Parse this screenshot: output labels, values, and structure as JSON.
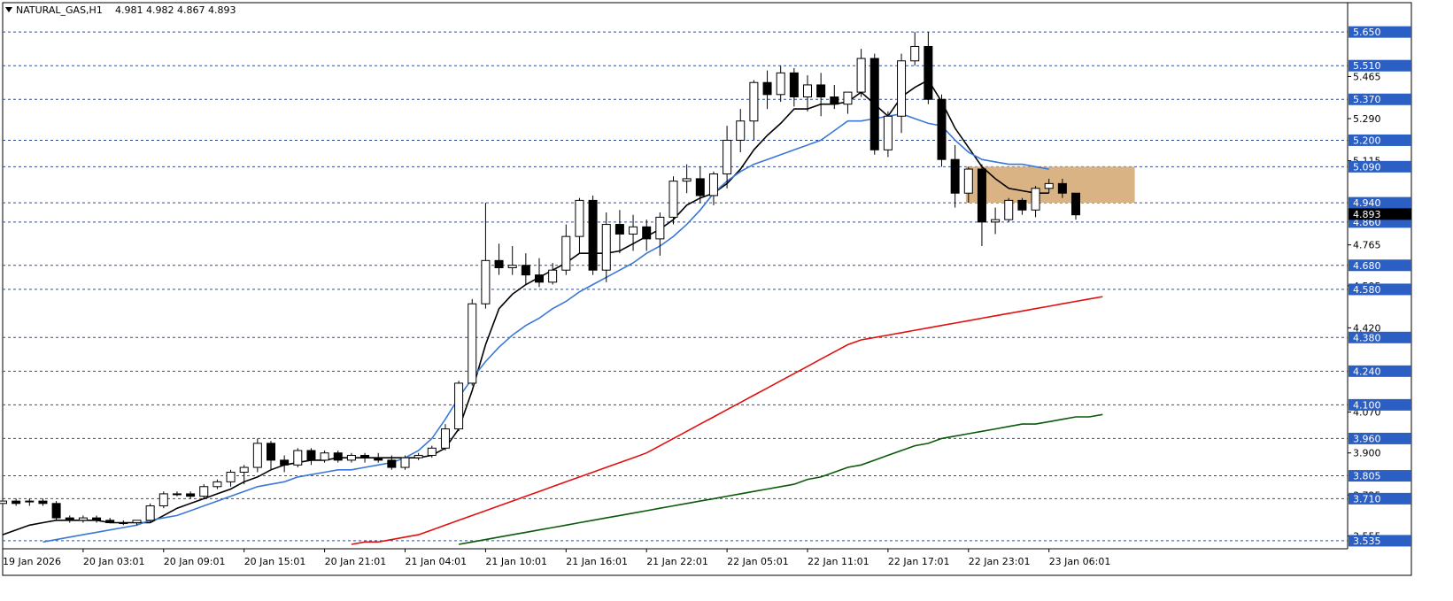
{
  "header": {
    "symbol": "NATURAL_GAS,H1",
    "ohlc": "4.981 4.982 4.867 4.893"
  },
  "colors": {
    "grid": "#1f4fb0",
    "level_label_bg": "#2c5fc4",
    "current_price_bg": "#000000",
    "zone_fill": "#d9b384",
    "ma_fast": "#000000",
    "ma_mid": "#3a78d8",
    "ma_slow": "#e01010",
    "ma_slowest": "#0a5a0a"
  },
  "chart_data": {
    "type": "candlestick",
    "title": "",
    "ylim": [
      3.52,
      5.68
    ],
    "y_ticks": [
      5.465,
      5.29,
      5.115,
      4.765,
      4.595,
      4.42,
      4.07,
      3.9,
      3.725,
      3.555
    ],
    "levels": [
      5.65,
      5.51,
      5.37,
      5.2,
      5.09,
      4.94,
      4.86,
      4.68,
      4.58,
      4.38,
      4.24,
      4.1,
      3.96,
      3.805,
      3.71,
      3.535
    ],
    "current_price": 4.893,
    "x_labels": [
      {
        "i": 0,
        "text": "19 Jan 2026"
      },
      {
        "i": 6,
        "text": "20 Jan 03:01"
      },
      {
        "i": 12,
        "text": "20 Jan 09:01"
      },
      {
        "i": 18,
        "text": "20 Jan 15:01"
      },
      {
        "i": 24,
        "text": "20 Jan 21:01"
      },
      {
        "i": 30,
        "text": "21 Jan 04:01"
      },
      {
        "i": 36,
        "text": "21 Jan 10:01"
      },
      {
        "i": 42,
        "text": "21 Jan 16:01"
      },
      {
        "i": 48,
        "text": "21 Jan 22:01"
      },
      {
        "i": 54,
        "text": "22 Jan 05:01"
      },
      {
        "i": 60,
        "text": "22 Jan 11:01"
      },
      {
        "i": 66,
        "text": "22 Jan 17:01"
      },
      {
        "i": 72,
        "text": "22 Jan 23:01"
      },
      {
        "i": 78,
        "text": "23 Jan 06:01"
      }
    ],
    "candles": [
      [
        3.69,
        3.71,
        3.68,
        3.7
      ],
      [
        3.7,
        3.71,
        3.68,
        3.69
      ],
      [
        3.7,
        3.71,
        3.68,
        3.7
      ],
      [
        3.7,
        3.71,
        3.68,
        3.69
      ],
      [
        3.69,
        3.7,
        3.62,
        3.63
      ],
      [
        3.63,
        3.64,
        3.61,
        3.62
      ],
      [
        3.62,
        3.64,
        3.61,
        3.63
      ],
      [
        3.63,
        3.64,
        3.61,
        3.62
      ],
      [
        3.62,
        3.63,
        3.61,
        3.61
      ],
      [
        3.61,
        3.62,
        3.6,
        3.61
      ],
      [
        3.61,
        3.62,
        3.6,
        3.62
      ],
      [
        3.62,
        3.69,
        3.61,
        3.68
      ],
      [
        3.68,
        3.74,
        3.67,
        3.73
      ],
      [
        3.73,
        3.74,
        3.72,
        3.73
      ],
      [
        3.73,
        3.74,
        3.71,
        3.72
      ],
      [
        3.72,
        3.77,
        3.71,
        3.76
      ],
      [
        3.76,
        3.79,
        3.75,
        3.78
      ],
      [
        3.78,
        3.83,
        3.76,
        3.82
      ],
      [
        3.82,
        3.85,
        3.77,
        3.84
      ],
      [
        3.84,
        3.96,
        3.82,
        3.94
      ],
      [
        3.94,
        3.95,
        3.83,
        3.87
      ],
      [
        3.87,
        3.89,
        3.82,
        3.85
      ],
      [
        3.85,
        3.92,
        3.84,
        3.91
      ],
      [
        3.91,
        3.92,
        3.85,
        3.87
      ],
      [
        3.87,
        3.91,
        3.86,
        3.9
      ],
      [
        3.9,
        3.91,
        3.86,
        3.87
      ],
      [
        3.87,
        3.9,
        3.86,
        3.89
      ],
      [
        3.89,
        3.9,
        3.86,
        3.88
      ],
      [
        3.88,
        3.9,
        3.86,
        3.87
      ],
      [
        3.87,
        3.89,
        3.83,
        3.84
      ],
      [
        3.84,
        3.89,
        3.83,
        3.88
      ],
      [
        3.88,
        3.9,
        3.87,
        3.89
      ],
      [
        3.89,
        3.93,
        3.88,
        3.92
      ],
      [
        3.92,
        4.02,
        3.91,
        4.0
      ],
      [
        4.0,
        4.2,
        3.99,
        4.19
      ],
      [
        4.19,
        4.54,
        4.18,
        4.52
      ],
      [
        4.52,
        4.94,
        4.5,
        4.7
      ],
      [
        4.7,
        4.77,
        4.64,
        4.67
      ],
      [
        4.67,
        4.76,
        4.64,
        4.68
      ],
      [
        4.68,
        4.73,
        4.6,
        4.64
      ],
      [
        4.64,
        4.71,
        4.59,
        4.61
      ],
      [
        4.61,
        4.69,
        4.6,
        4.66
      ],
      [
        4.66,
        4.85,
        4.64,
        4.8
      ],
      [
        4.8,
        4.96,
        4.73,
        4.95
      ],
      [
        4.95,
        4.97,
        4.64,
        4.66
      ],
      [
        4.66,
        4.9,
        4.61,
        4.85
      ],
      [
        4.85,
        4.91,
        4.73,
        4.81
      ],
      [
        4.81,
        4.89,
        4.74,
        4.84
      ],
      [
        4.84,
        4.87,
        4.74,
        4.79
      ],
      [
        4.79,
        4.9,
        4.72,
        4.88
      ],
      [
        4.88,
        5.05,
        4.85,
        5.03
      ],
      [
        5.03,
        5.1,
        4.98,
        5.04
      ],
      [
        5.04,
        5.09,
        4.94,
        4.97
      ],
      [
        4.97,
        5.07,
        4.93,
        5.06
      ],
      [
        5.06,
        5.26,
        5.0,
        5.2
      ],
      [
        5.2,
        5.33,
        5.15,
        5.28
      ],
      [
        5.28,
        5.45,
        5.2,
        5.44
      ],
      [
        5.44,
        5.49,
        5.33,
        5.39
      ],
      [
        5.39,
        5.51,
        5.36,
        5.48
      ],
      [
        5.48,
        5.5,
        5.34,
        5.38
      ],
      [
        5.38,
        5.47,
        5.32,
        5.43
      ],
      [
        5.43,
        5.48,
        5.3,
        5.38
      ],
      [
        5.38,
        5.43,
        5.33,
        5.35
      ],
      [
        5.35,
        5.38,
        5.31,
        5.4
      ],
      [
        5.4,
        5.58,
        5.38,
        5.54
      ],
      [
        5.54,
        5.56,
        5.14,
        5.16
      ],
      [
        5.16,
        5.32,
        5.13,
        5.3
      ],
      [
        5.3,
        5.56,
        5.23,
        5.53
      ],
      [
        5.53,
        5.65,
        5.51,
        5.59
      ],
      [
        5.59,
        5.65,
        5.35,
        5.37
      ],
      [
        5.37,
        5.39,
        5.09,
        5.12
      ],
      [
        5.12,
        5.18,
        4.92,
        4.98
      ],
      [
        4.98,
        5.09,
        4.94,
        5.08
      ],
      [
        5.08,
        5.1,
        4.76,
        4.86
      ],
      [
        4.86,
        4.92,
        4.81,
        4.87
      ],
      [
        4.87,
        4.96,
        4.86,
        4.95
      ],
      [
        4.95,
        4.96,
        4.89,
        4.91
      ],
      [
        4.91,
        5.01,
        4.88,
        5.0
      ],
      [
        5.0,
        5.04,
        4.98,
        5.02
      ],
      [
        5.02,
        5.04,
        4.96,
        4.98
      ],
      [
        4.98,
        4.98,
        4.87,
        4.89
      ]
    ],
    "series": [
      {
        "color_key": "ma_fast",
        "start": 0,
        "values": [
          3.56,
          3.58,
          3.6,
          3.61,
          3.62,
          3.62,
          3.62,
          3.62,
          3.61,
          3.61,
          3.61,
          3.61,
          3.64,
          3.67,
          3.69,
          3.71,
          3.73,
          3.75,
          3.78,
          3.8,
          3.83,
          3.85,
          3.86,
          3.87,
          3.87,
          3.88,
          3.88,
          3.88,
          3.88,
          3.88,
          3.88,
          3.88,
          3.89,
          3.92,
          4.0,
          4.16,
          4.35,
          4.5,
          4.56,
          4.6,
          4.63,
          4.66,
          4.69,
          4.73,
          4.73,
          4.73,
          4.74,
          4.77,
          4.8,
          4.83,
          4.87,
          4.93,
          4.96,
          4.98,
          5.02,
          5.08,
          5.16,
          5.22,
          5.27,
          5.33,
          5.33,
          5.35,
          5.35,
          5.36,
          5.4,
          5.35,
          5.3,
          5.38,
          5.42,
          5.45,
          5.36,
          5.25,
          5.17,
          5.09,
          5.04,
          5.0,
          4.99,
          4.98,
          4.98
        ]
      },
      {
        "color_key": "ma_mid",
        "start": 3,
        "values": [
          3.53,
          3.54,
          3.55,
          3.56,
          3.57,
          3.58,
          3.59,
          3.6,
          3.62,
          3.63,
          3.64,
          3.66,
          3.68,
          3.7,
          3.72,
          3.74,
          3.76,
          3.77,
          3.78,
          3.8,
          3.81,
          3.82,
          3.83,
          3.83,
          3.84,
          3.85,
          3.86,
          3.88,
          3.91,
          3.96,
          4.04,
          4.13,
          4.21,
          4.28,
          4.34,
          4.39,
          4.43,
          4.46,
          4.5,
          4.53,
          4.57,
          4.6,
          4.63,
          4.66,
          4.69,
          4.73,
          4.76,
          4.8,
          4.85,
          4.91,
          4.98,
          5.03,
          5.07,
          5.1,
          5.12,
          5.14,
          5.16,
          5.18,
          5.2,
          5.24,
          5.28,
          5.28,
          5.29,
          5.3,
          5.31,
          5.29,
          5.27,
          5.26,
          5.2,
          5.15,
          5.12,
          5.11,
          5.1,
          5.1,
          5.09,
          5.08
        ]
      },
      {
        "color_key": "ma_slow",
        "start": 26,
        "values": [
          3.52,
          3.53,
          3.53,
          3.54,
          3.55,
          3.56,
          3.58,
          3.6,
          3.62,
          3.64,
          3.66,
          3.68,
          3.7,
          3.72,
          3.74,
          3.76,
          3.78,
          3.8,
          3.82,
          3.84,
          3.86,
          3.88,
          3.9,
          3.93,
          3.96,
          3.99,
          4.02,
          4.05,
          4.08,
          4.11,
          4.14,
          4.17,
          4.2,
          4.23,
          4.26,
          4.29,
          4.32,
          4.35,
          4.37,
          4.38,
          4.39,
          4.4,
          4.41,
          4.42,
          4.43,
          4.44,
          4.45,
          4.46,
          4.47,
          4.48,
          4.49,
          4.5,
          4.51,
          4.52,
          4.53,
          4.54,
          4.55
        ]
      },
      {
        "color_key": "ma_slowest",
        "start": 34,
        "values": [
          3.52,
          3.53,
          3.54,
          3.55,
          3.56,
          3.57,
          3.58,
          3.59,
          3.6,
          3.61,
          3.62,
          3.63,
          3.64,
          3.65,
          3.66,
          3.67,
          3.68,
          3.69,
          3.7,
          3.71,
          3.72,
          3.73,
          3.74,
          3.75,
          3.76,
          3.77,
          3.79,
          3.8,
          3.82,
          3.84,
          3.85,
          3.87,
          3.89,
          3.91,
          3.93,
          3.94,
          3.96,
          3.97,
          3.98,
          3.99,
          4.0,
          4.01,
          4.02,
          4.02,
          4.03,
          4.04,
          4.05,
          4.05,
          4.06
        ]
      }
    ],
    "zone": {
      "start": 72,
      "end": 84,
      "low": 4.94,
      "high": 5.09
    }
  }
}
